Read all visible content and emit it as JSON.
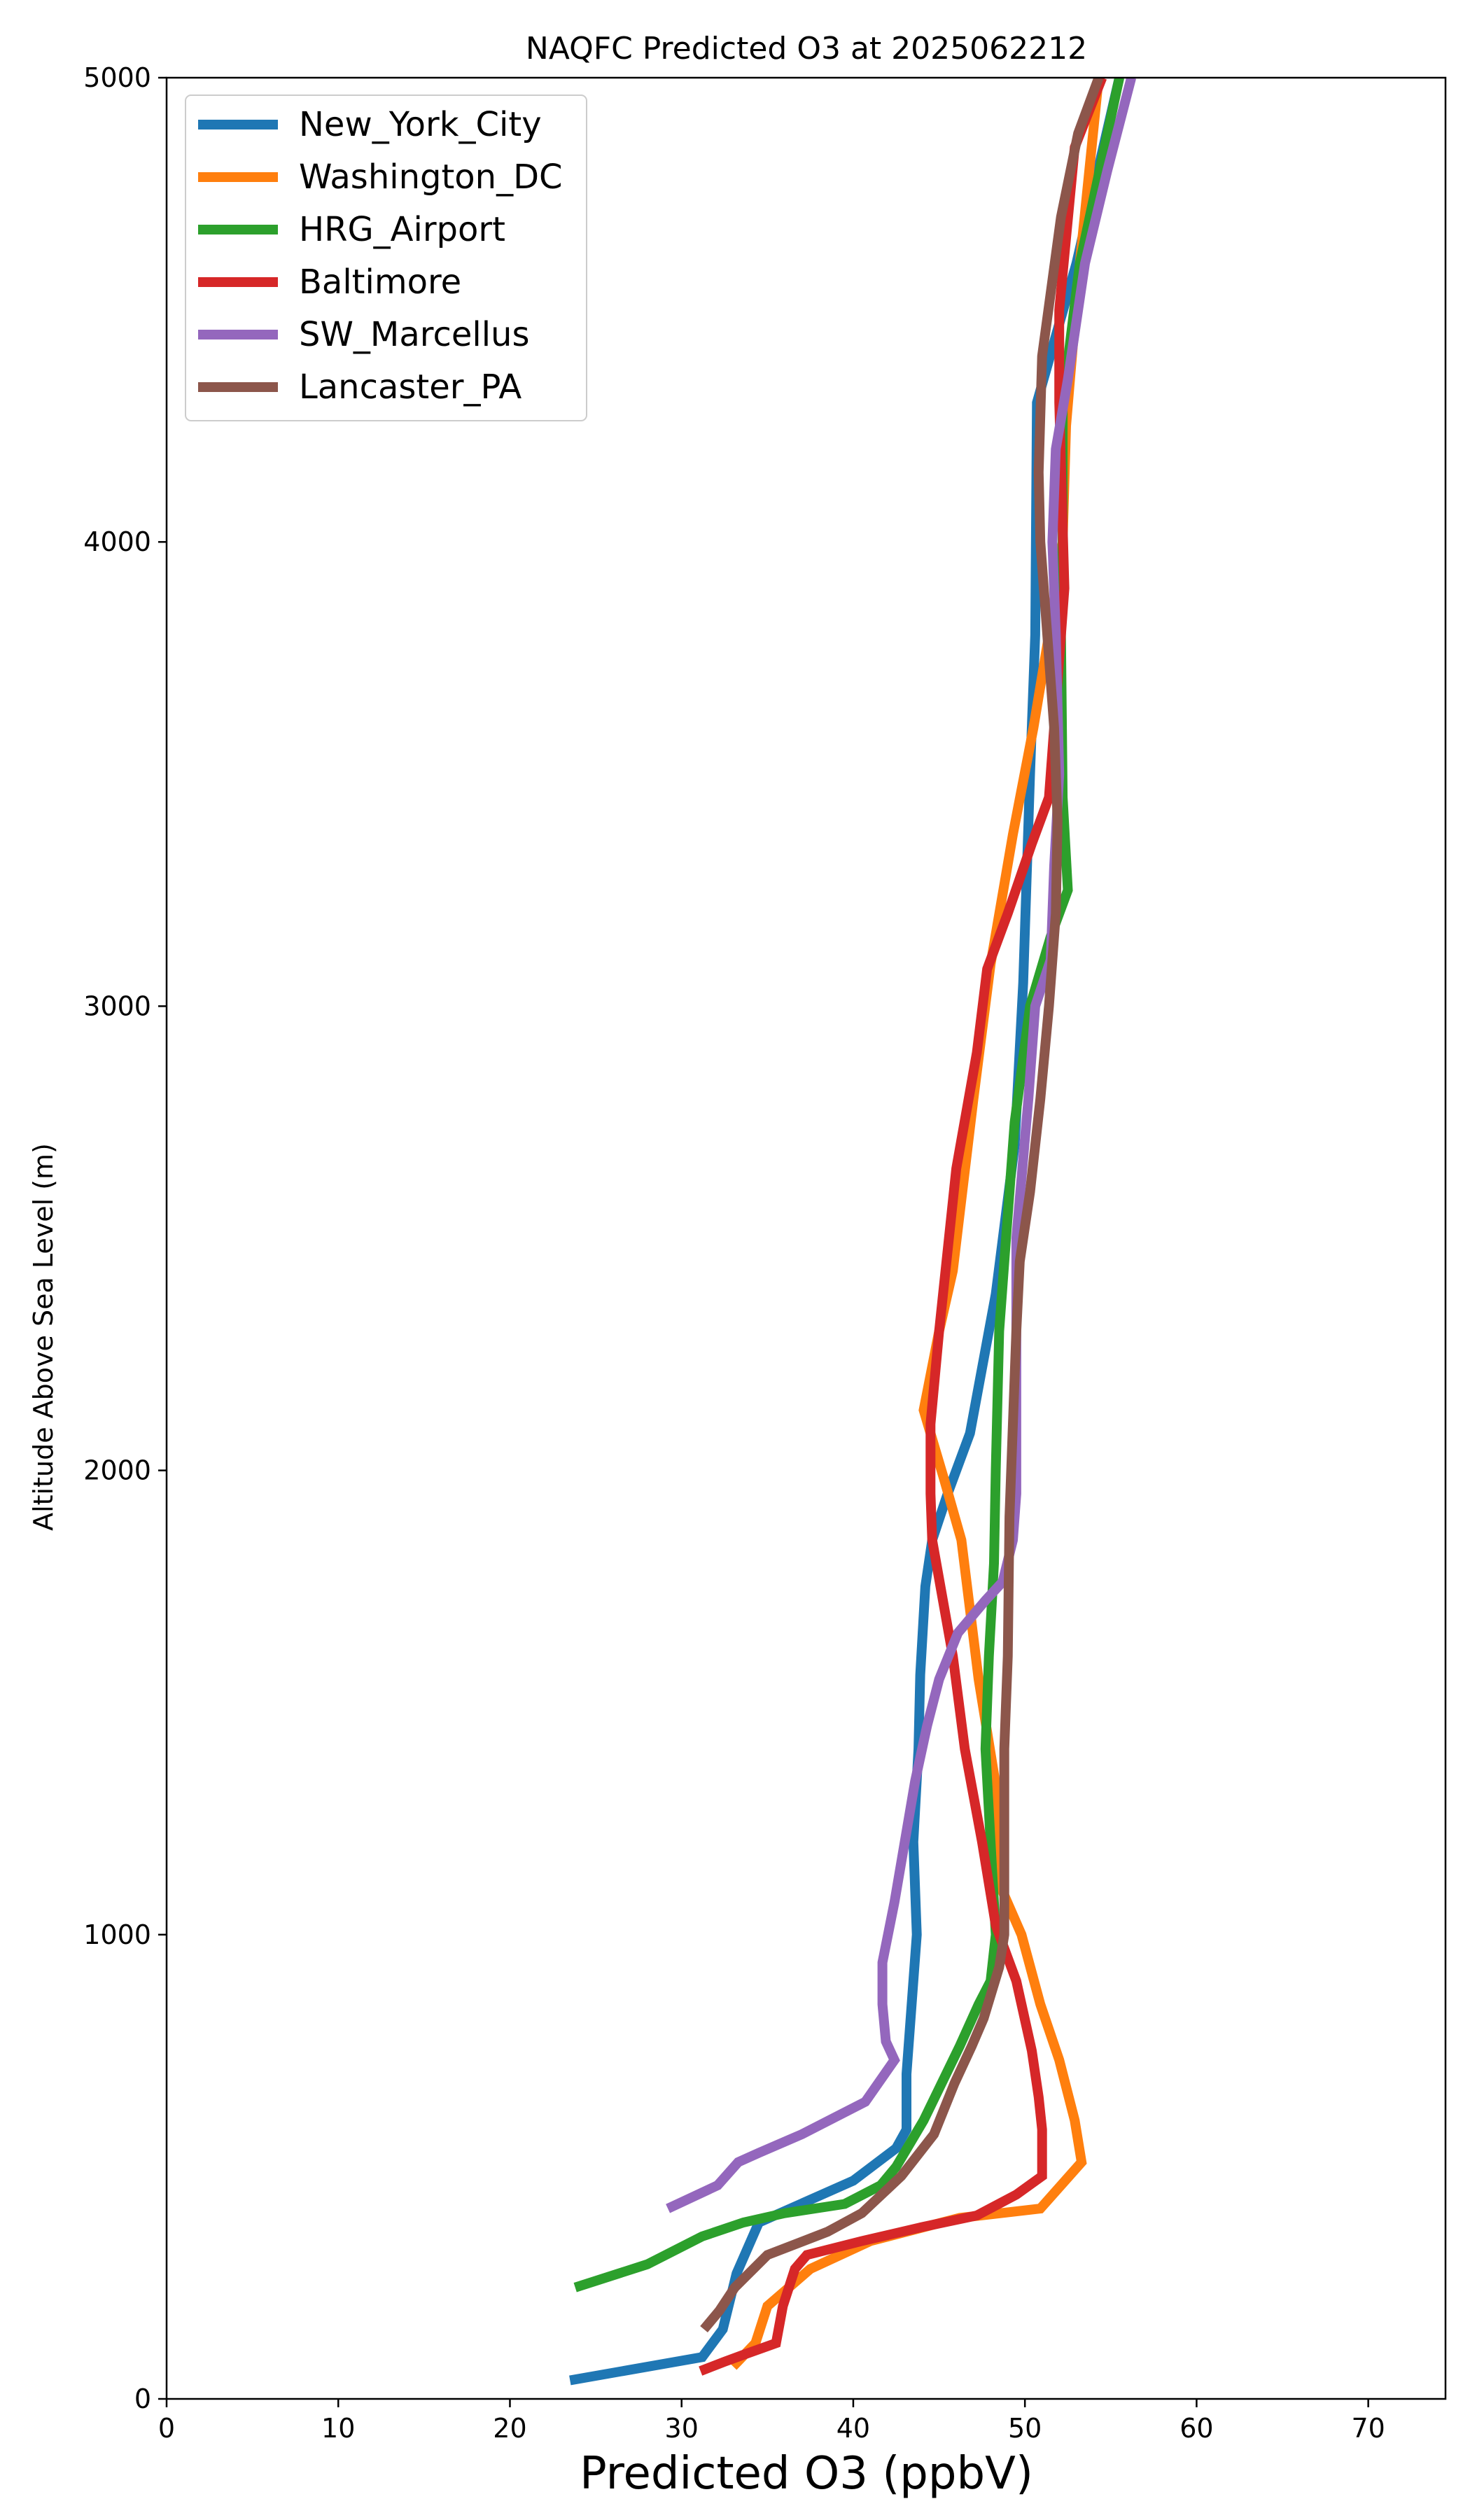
{
  "chart_data": {
    "type": "line",
    "title": "NAQFC Predicted O3 at 2025062212",
    "xlabel": "Predicted O3 (ppbV)",
    "ylabel": "Altitude Above Sea Level (m)",
    "xlim": [
      0,
      74.5
    ],
    "ylim": [
      0,
      5000
    ],
    "xticks": [
      0,
      10,
      20,
      30,
      40,
      50,
      60,
      70
    ],
    "yticks": [
      0,
      1000,
      2000,
      3000,
      4000,
      5000
    ],
    "grid": false,
    "legend_position": "upper-left",
    "series": [
      {
        "name": "New_York_City",
        "color": "#1f77b4",
        "points": [
          [
            23.5,
            40
          ],
          [
            31.2,
            90
          ],
          [
            32.4,
            150
          ],
          [
            33.2,
            270
          ],
          [
            34.5,
            380
          ],
          [
            40,
            470
          ],
          [
            42.5,
            540
          ],
          [
            43.1,
            580
          ],
          [
            43.1,
            700
          ],
          [
            43.5,
            900
          ],
          [
            43.7,
            1000
          ],
          [
            43.5,
            1200
          ],
          [
            43.8,
            1400
          ],
          [
            43.9,
            1560
          ],
          [
            44.2,
            1750
          ],
          [
            44.6,
            1850
          ],
          [
            45.5,
            1950
          ],
          [
            46.8,
            2080
          ],
          [
            48.3,
            2380
          ],
          [
            49.4,
            2700
          ],
          [
            49.9,
            3050
          ],
          [
            50.3,
            3500
          ],
          [
            50.6,
            3800
          ],
          [
            50.7,
            4300
          ],
          [
            53,
            4600
          ],
          [
            55.5,
            5000
          ]
        ]
      },
      {
        "name": "Washington_DC",
        "color": "#ff7f0e",
        "points": [
          [
            33,
            70
          ],
          [
            34.3,
            120
          ],
          [
            35,
            200
          ],
          [
            37.5,
            280
          ],
          [
            41,
            340
          ],
          [
            46.2,
            390
          ],
          [
            50.9,
            410
          ],
          [
            53.3,
            510
          ],
          [
            52.9,
            600
          ],
          [
            52,
            730
          ],
          [
            50.9,
            850
          ],
          [
            49.8,
            1000
          ],
          [
            48.5,
            1110
          ],
          [
            48.4,
            1300
          ],
          [
            47.3,
            1550
          ],
          [
            46.3,
            1850
          ],
          [
            45.3,
            1980
          ],
          [
            44.1,
            2130
          ],
          [
            45,
            2300
          ],
          [
            45.8,
            2430
          ],
          [
            47,
            2800
          ],
          [
            48,
            3090
          ],
          [
            49.3,
            3370
          ],
          [
            50.5,
            3600
          ],
          [
            51.4,
            3800
          ],
          [
            52.2,
            4000
          ],
          [
            52.4,
            4250
          ],
          [
            53.2,
            4600
          ],
          [
            54.3,
            5000
          ]
        ]
      },
      {
        "name": "HRG_Airport",
        "color": "#2ca02c",
        "points": [
          [
            23.8,
            240
          ],
          [
            28,
            290
          ],
          [
            31.2,
            350
          ],
          [
            33.6,
            380
          ],
          [
            36,
            400
          ],
          [
            39.5,
            420
          ],
          [
            41.6,
            460
          ],
          [
            42.5,
            500
          ],
          [
            44.1,
            600
          ],
          [
            46.2,
            760
          ],
          [
            47.3,
            850
          ],
          [
            48,
            900
          ],
          [
            48.3,
            1000
          ],
          [
            48,
            1200
          ],
          [
            47.7,
            1400
          ],
          [
            47.9,
            1600
          ],
          [
            48.2,
            1800
          ],
          [
            48.3,
            2000
          ],
          [
            48.5,
            2300
          ],
          [
            48.9,
            2500
          ],
          [
            49.4,
            2750
          ],
          [
            50.3,
            3000
          ],
          [
            51.5,
            3150
          ],
          [
            52.5,
            3250
          ],
          [
            52.2,
            3450
          ],
          [
            52.1,
            3800
          ],
          [
            52.2,
            4000
          ],
          [
            52.2,
            4300
          ],
          [
            53.2,
            4600
          ],
          [
            55.5,
            5000
          ]
        ]
      },
      {
        "name": "Baltimore",
        "color": "#d62728",
        "points": [
          [
            31.1,
            60
          ],
          [
            32.5,
            80
          ],
          [
            33.6,
            95
          ],
          [
            35.5,
            120
          ],
          [
            35.9,
            200
          ],
          [
            36.6,
            280
          ],
          [
            37.3,
            310
          ],
          [
            40.5,
            340
          ],
          [
            44,
            370
          ],
          [
            47.2,
            395
          ],
          [
            49.5,
            440
          ],
          [
            51,
            480
          ],
          [
            51,
            580
          ],
          [
            50.8,
            650
          ],
          [
            50.4,
            750
          ],
          [
            49.5,
            900
          ],
          [
            48.3,
            1020
          ],
          [
            47.5,
            1200
          ],
          [
            46.5,
            1400
          ],
          [
            45.8,
            1600
          ],
          [
            44.6,
            1850
          ],
          [
            44.5,
            1950
          ],
          [
            44.5,
            2100
          ],
          [
            45,
            2300
          ],
          [
            46,
            2650
          ],
          [
            47.2,
            2900
          ],
          [
            47.8,
            3080
          ],
          [
            49,
            3200
          ],
          [
            50.4,
            3350
          ],
          [
            51.4,
            3450
          ],
          [
            51.7,
            3600
          ],
          [
            52.3,
            3900
          ],
          [
            52,
            4300
          ],
          [
            52,
            4500
          ],
          [
            52.9,
            4850
          ],
          [
            54.5,
            5000
          ]
        ]
      },
      {
        "name": "SW_Marcellus",
        "color": "#9467bd",
        "points": [
          [
            29.2,
            410
          ],
          [
            32.1,
            460
          ],
          [
            33.3,
            510
          ],
          [
            34.5,
            530
          ],
          [
            37,
            570
          ],
          [
            40.7,
            640
          ],
          [
            42.4,
            730
          ],
          [
            41.9,
            770
          ],
          [
            41.7,
            850
          ],
          [
            41.7,
            940
          ],
          [
            42.4,
            1070
          ],
          [
            43,
            1200
          ],
          [
            43.6,
            1330
          ],
          [
            44.3,
            1450
          ],
          [
            45,
            1550
          ],
          [
            46.1,
            1650
          ],
          [
            47.7,
            1720
          ],
          [
            48.7,
            1760
          ],
          [
            49.3,
            1850
          ],
          [
            49.5,
            1950
          ],
          [
            49.5,
            2100
          ],
          [
            49.5,
            2500
          ],
          [
            50.2,
            2800
          ],
          [
            50.6,
            3000
          ],
          [
            51.5,
            3100
          ],
          [
            51.7,
            3300
          ],
          [
            52,
            3500
          ],
          [
            51.8,
            3800
          ],
          [
            51.6,
            4000
          ],
          [
            51.8,
            4200
          ],
          [
            52.5,
            4350
          ],
          [
            53.5,
            4600
          ],
          [
            54.8,
            4800
          ],
          [
            56.2,
            5000
          ]
        ]
      },
      {
        "name": "Lancaster_PA",
        "color": "#8c564b",
        "points": [
          [
            31.3,
            150
          ],
          [
            32.2,
            190
          ],
          [
            33.1,
            240
          ],
          [
            35,
            310
          ],
          [
            38.5,
            360
          ],
          [
            40.5,
            400
          ],
          [
            42.8,
            480
          ],
          [
            44.7,
            570
          ],
          [
            45.9,
            680
          ],
          [
            46.9,
            760
          ],
          [
            47.6,
            820
          ],
          [
            48.5,
            930
          ],
          [
            48.8,
            1000
          ],
          [
            48.8,
            1400
          ],
          [
            49,
            1600
          ],
          [
            49.1,
            1900
          ],
          [
            49.3,
            2100
          ],
          [
            49.5,
            2300
          ],
          [
            49.7,
            2450
          ],
          [
            50.3,
            2600
          ],
          [
            50.9,
            2800
          ],
          [
            51.4,
            3000
          ],
          [
            51.8,
            3200
          ],
          [
            51.9,
            3400
          ],
          [
            51.7,
            3600
          ],
          [
            51.3,
            3800
          ],
          [
            50.9,
            4000
          ],
          [
            50.8,
            4150
          ],
          [
            51,
            4400
          ],
          [
            52.1,
            4700
          ],
          [
            53.1,
            4880
          ],
          [
            54.3,
            5000
          ]
        ]
      }
    ]
  }
}
